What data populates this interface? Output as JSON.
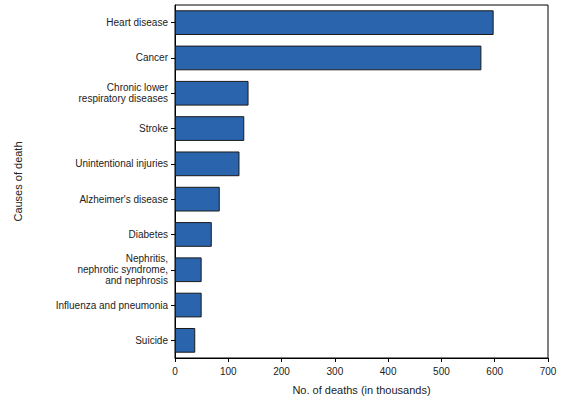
{
  "chart_data": {
    "type": "bar",
    "orientation": "horizontal",
    "xlabel": "No. of deaths (in thousands)",
    "ylabel": "Causes of death",
    "categories": [
      "Heart disease",
      "Cancer",
      "Chronic lower\nrespiratory diseases",
      "Stroke",
      "Unintentional injuries",
      "Alzheimer's disease",
      "Diabetes",
      "Nephritis,\nnephrotic syndrome,\nand nephrosis",
      "Influenza and pneumonia",
      "Suicide"
    ],
    "values": [
      598,
      575,
      138,
      130,
      121,
      84,
      69,
      50,
      50,
      38
    ],
    "color": "#2a64ad",
    "xlim": [
      0,
      700
    ],
    "xticks": [
      0,
      100,
      200,
      300,
      400,
      500,
      600,
      700
    ],
    "grid": false,
    "data_labels": false
  }
}
